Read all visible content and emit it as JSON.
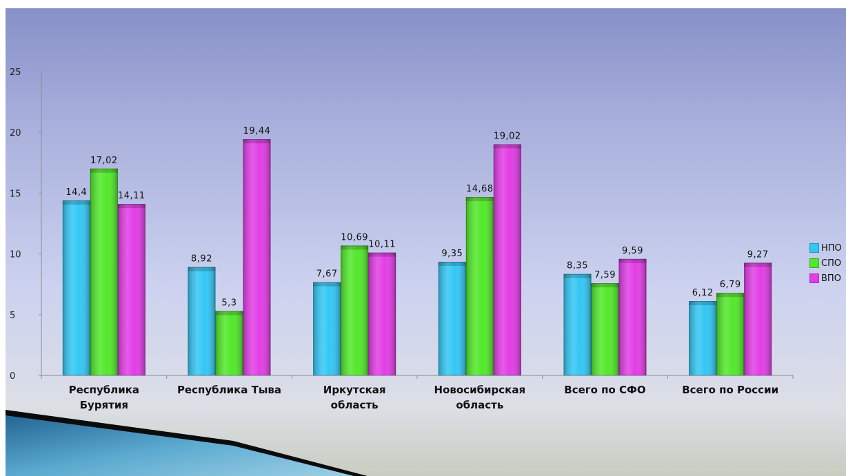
{
  "chart_data": {
    "type": "bar",
    "categories": [
      [
        "Республика",
        "Бурятия"
      ],
      [
        "Республика Тыва"
      ],
      [
        "Иркутская",
        "область"
      ],
      [
        "Новосибирская",
        "область"
      ],
      [
        "Всего по СФО"
      ],
      [
        "Всего по России"
      ]
    ],
    "series": [
      {
        "name": "НПО",
        "values": [
          14.4,
          8.92,
          7.67,
          9.35,
          8.35,
          6.12
        ],
        "labels": [
          "14,4",
          "8,92",
          "7,67",
          "9,35",
          "8,35",
          "6,12"
        ],
        "color": "#33c7f5"
      },
      {
        "name": "СПО",
        "values": [
          17.02,
          5.3,
          10.69,
          14.68,
          7.59,
          6.79
        ],
        "labels": [
          "17,02",
          "5,3",
          "10,69",
          "14,68",
          "7,59",
          "6,79"
        ],
        "color": "#52e82a"
      },
      {
        "name": "ВПО",
        "values": [
          14.11,
          19.44,
          10.11,
          19.02,
          9.59,
          9.27
        ],
        "labels": [
          "14,11",
          "19,44",
          "10,11",
          "19,02",
          "9,59",
          "9,27"
        ],
        "color": "#e23de6"
      }
    ],
    "ylim": [
      0,
      25
    ],
    "yticks": [
      "0",
      "5",
      "10",
      "15",
      "20",
      "25"
    ],
    "legend_position": "right",
    "grid": false
  }
}
